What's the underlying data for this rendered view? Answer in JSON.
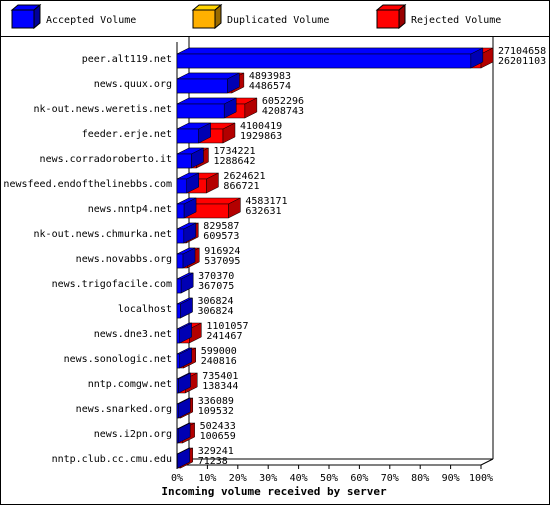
{
  "chart_data": {
    "type": "bar3d",
    "xlabel": "Incoming volume received by server",
    "legend": [
      {
        "name": "Accepted Volume",
        "color": "#0000ff"
      },
      {
        "name": "Duplicated Volume",
        "color": "#ffb000"
      },
      {
        "name": "Rejected Volume",
        "color": "#ff0000"
      }
    ],
    "categories": [
      "peer.alt119.net",
      "news.quux.org",
      "nk-out.news.weretis.net",
      "feeder.erje.net",
      "news.corradoroberto.it",
      "newsfeed.endofthelinebbs.com",
      "news.nntp4.net",
      "nk-out.news.chmurka.net",
      "news.novabbs.org",
      "news.trigofacile.com",
      "localhost",
      "news.dne3.net",
      "news.sonologic.net",
      "nntp.comgw.net",
      "news.snarked.org",
      "news.i2pn.org",
      "nntp.club.cc.cmu.edu"
    ],
    "values": [
      27104658,
      4893983,
      6052296,
      4100419,
      1734221,
      2624621,
      4583171,
      829587,
      916924,
      370370,
      306824,
      1101057,
      599000,
      735401,
      336089,
      502433,
      329241
    ],
    "accepted": [
      26201103,
      4486574,
      4208743,
      1929863,
      1288642,
      866721,
      632631,
      609573,
      537095,
      367075,
      306824,
      241467,
      240816,
      138344,
      109532,
      100659,
      71238
    ],
    "xlim": [
      0,
      27104658
    ],
    "xticks": [
      {
        "value": 0,
        "label": "0%"
      },
      {
        "value": 2710465.8,
        "label": "10%"
      },
      {
        "value": 5420931.6,
        "label": "20%"
      },
      {
        "value": 8131397.4,
        "label": "30%"
      },
      {
        "value": 10841863.2,
        "label": "40%"
      },
      {
        "value": 13552329,
        "label": "50%"
      },
      {
        "value": 16262794.8,
        "label": "60%"
      },
      {
        "value": 18973260.6,
        "label": "70%"
      },
      {
        "value": 21683726.4,
        "label": "80%"
      },
      {
        "value": 24394192.2,
        "label": "90%"
      },
      {
        "value": 27104658,
        "label": "100%"
      }
    ]
  }
}
